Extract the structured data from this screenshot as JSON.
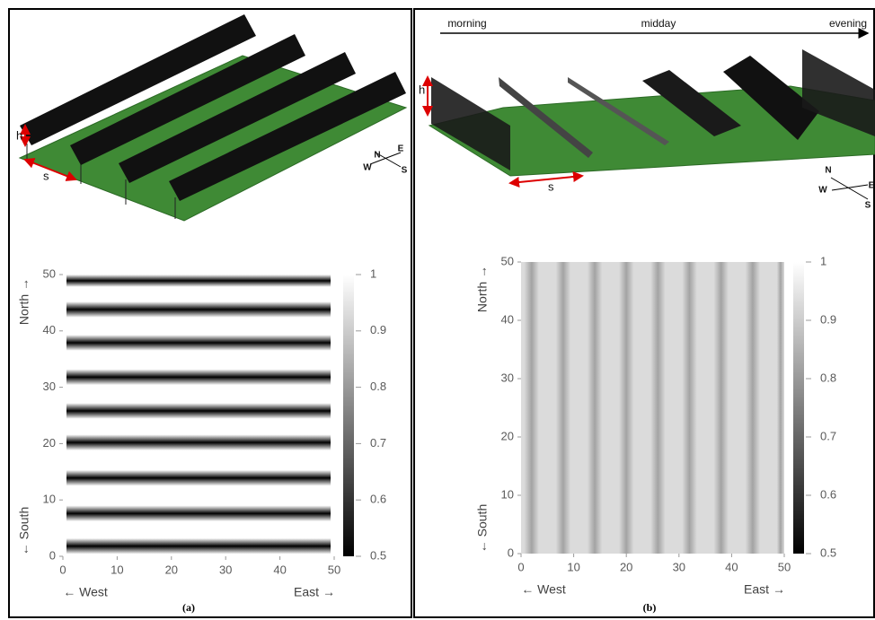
{
  "chart_data": [
    {
      "type": "heatmap",
      "panel_label": "(a)",
      "xlim": [
        0,
        50
      ],
      "xticks": [
        0,
        10,
        20,
        30,
        40,
        50
      ],
      "ylim": [
        0,
        50
      ],
      "yticks": [
        0,
        10,
        20,
        30,
        40,
        50
      ],
      "x_label_left": "← West",
      "x_label_right": "East →",
      "y_label_top": "North →",
      "y_label_bottom": "← South",
      "colorbar_lim": [
        0.5,
        1
      ],
      "colorbar_ticks": [
        0.5,
        0.6,
        0.7,
        0.8,
        0.9,
        1
      ],
      "stripe_axis": "y",
      "stripe_positions": [
        1.8,
        7.6,
        13.9,
        20.2,
        25.8,
        31.8,
        37.9,
        43.8,
        49.2
      ],
      "stripe_min": 0.5,
      "base_value": 1,
      "height_label": "h",
      "spacing_label": "s",
      "compass": {
        "n": "N",
        "e": "E",
        "w": "W",
        "s": "S"
      }
    },
    {
      "type": "heatmap",
      "panel_label": "(b)",
      "xlim": [
        0,
        50
      ],
      "xticks": [
        0,
        10,
        20,
        30,
        40,
        50
      ],
      "ylim": [
        0,
        50
      ],
      "yticks": [
        0,
        10,
        20,
        30,
        40,
        50
      ],
      "x_label_left": "← West",
      "x_label_right": "East →",
      "y_label_top": "North →",
      "y_label_bottom": "← South",
      "colorbar_lim": [
        0.5,
        1
      ],
      "colorbar_ticks": [
        0.5,
        0.6,
        0.7,
        0.8,
        0.9,
        1
      ],
      "stripe_axis": "x",
      "stripe_positions": [
        2,
        8,
        14,
        20,
        26,
        32,
        38,
        44,
        50
      ],
      "stripe_min": 0.82,
      "base_value": 0.93,
      "height_label": "h",
      "spacing_label": "s",
      "compass": {
        "n": "N",
        "e": "E",
        "w": "W",
        "s": "S"
      },
      "time_labels": [
        "morning",
        "midday",
        "evening"
      ]
    }
  ]
}
